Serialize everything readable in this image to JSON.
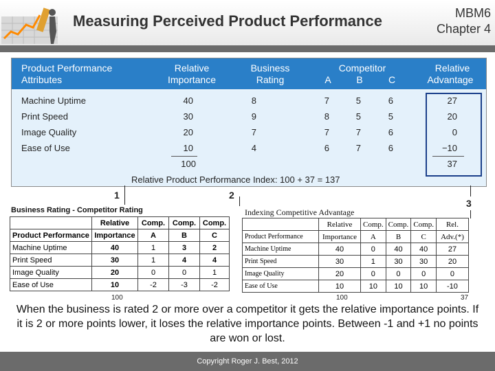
{
  "header": {
    "title": "Measuring Perceived Product Performance",
    "course": "MBM6",
    "chapter": "Chapter 4"
  },
  "top_table": {
    "headers": {
      "attributes": [
        "Product Performance",
        "Attributes"
      ],
      "importance": [
        "Relative",
        "Importance"
      ],
      "rating": [
        "Business",
        "Rating"
      ],
      "competitor": "Competitor",
      "comp_letters": [
        "A",
        "B",
        "C"
      ],
      "advantage": [
        "Relative",
        "Advantage"
      ]
    },
    "rows": [
      {
        "attr": "Machine Uptime",
        "imp": "40",
        "rating": "8",
        "a": "7",
        "b": "5",
        "c": "6",
        "adv": "27"
      },
      {
        "attr": "Print Speed",
        "imp": "30",
        "rating": "9",
        "a": "8",
        "b": "5",
        "c": "5",
        "adv": "20"
      },
      {
        "attr": "Image Quality",
        "imp": "20",
        "rating": "7",
        "a": "7",
        "b": "7",
        "c": "6",
        "adv": "0"
      },
      {
        "attr": "Ease of Use",
        "imp": "10",
        "rating": "4",
        "a": "6",
        "b": "7",
        "c": "6",
        "adv": "−10"
      }
    ],
    "imp_total": "100",
    "adv_total": "37",
    "index_text": "Relative Product Performance Index: 100 + 37 = 137"
  },
  "markers": {
    "one": "1",
    "two": "2",
    "three": "3"
  },
  "rating_table": {
    "title": "Business Rating - Competitor Rating",
    "head1": [
      "",
      "Relative",
      "Comp.",
      "Comp.",
      "Comp."
    ],
    "head2": [
      "Product Performance",
      "Importance",
      "A",
      "B",
      "C"
    ],
    "rows": [
      [
        "Machine Uptime",
        "40",
        "1",
        "3",
        "2"
      ],
      [
        "Print Speed",
        "30",
        "1",
        "4",
        "4"
      ],
      [
        "Image Quality",
        "20",
        "0",
        "0",
        "1"
      ],
      [
        "Ease of Use",
        "10",
        "-2",
        "-3",
        "-2"
      ]
    ],
    "total": "100"
  },
  "advantage_table": {
    "title": "Indexing Competitive Advantage",
    "head1": [
      "",
      "Relative",
      "Comp.",
      "Comp.",
      "Comp.",
      "Rel."
    ],
    "head2": [
      "Product Performance",
      "Importance",
      "A",
      "B",
      "C",
      "Adv.(*)"
    ],
    "rows": [
      [
        "Machine Uptime",
        "40",
        "0",
        "40",
        "40",
        "27"
      ],
      [
        "Print Speed",
        "30",
        "1",
        "30",
        "30",
        "20"
      ],
      [
        "Image Quality",
        "20",
        "0",
        "0",
        "0",
        "0"
      ],
      [
        "Ease of Use",
        "10",
        "10",
        "10",
        "10",
        "-10"
      ]
    ],
    "total_importance": "100",
    "total_adv": "37"
  },
  "explanation": "When the business is rated 2 or more over a competitor it gets the relative importance points. If it is 2 or more points lower, it loses the relative importance points. Between -1 and +1 no points are won or lost.",
  "footer": {
    "copyright": "Copyright Roger J. Best, 2012"
  },
  "colors": {
    "header_blue": "#2a7fc8",
    "body_blue": "#e4f1fb",
    "bar_gray": "#6b6b6b"
  }
}
